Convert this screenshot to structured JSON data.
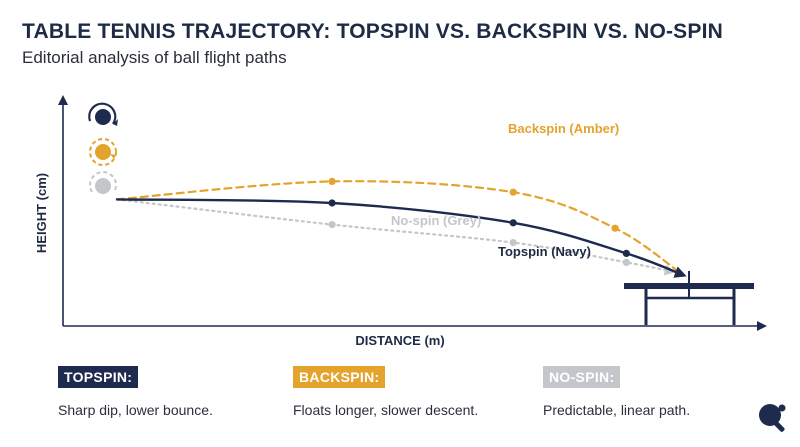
{
  "title": "TABLE TENNIS TRAJECTORY: TOPSPIN VS. BACKSPIN VS. NO-SPIN",
  "subtitle": "Editorial analysis of ball flight paths",
  "colors": {
    "navy": "#1e2b4f",
    "amber": "#e3a32d",
    "grey": "#c3c6cb",
    "text": "#2a2f3a"
  },
  "chart_data": {
    "type": "line",
    "title": "TABLE TENNIS TRAJECTORY: TOPSPIN VS. BACKSPIN VS. NO-SPIN",
    "xlabel": "DISTANCE (m)",
    "ylabel": "HEIGHT (cm)",
    "x_ticks": [],
    "y_ticks": [],
    "grid": false,
    "legend_position": "bottom",
    "series": [
      {
        "name": "Topspin (Navy)",
        "color": "#1e2b4f",
        "style": "solid",
        "points": [
          [
            0,
            60
          ],
          [
            0.38,
            58
          ],
          [
            0.7,
            47
          ],
          [
            0.9,
            30
          ],
          [
            1.0,
            18
          ]
        ]
      },
      {
        "name": "Backspin (Amber)",
        "color": "#e3a32d",
        "style": "dashed",
        "points": [
          [
            0,
            60
          ],
          [
            0.38,
            70
          ],
          [
            0.7,
            64
          ],
          [
            0.88,
            44
          ],
          [
            1.0,
            18
          ]
        ]
      },
      {
        "name": "No-spin (Grey)",
        "color": "#c3c6cb",
        "style": "dotted",
        "points": [
          [
            0,
            60
          ],
          [
            0.38,
            46
          ],
          [
            0.7,
            36
          ],
          [
            0.9,
            25
          ],
          [
            0.98,
            20
          ]
        ]
      }
    ]
  },
  "legend": [
    {
      "label": "TOPSPIN:",
      "description": "Sharp dip, lower bounce.",
      "color": "#1e2b4f"
    },
    {
      "label": "BACKSPIN:",
      "description": "Floats longer, slower descent.",
      "color": "#e3a32d"
    },
    {
      "label": "NO-SPIN:",
      "description": "Predictable, linear path.",
      "color": "#c3c6cb"
    }
  ],
  "icons": {
    "spin_icons": [
      "topspin-ball-icon",
      "backspin-ball-icon",
      "no-spin-ball-icon"
    ],
    "table": "table-tennis-table-icon",
    "paddle": "paddle-icon"
  }
}
